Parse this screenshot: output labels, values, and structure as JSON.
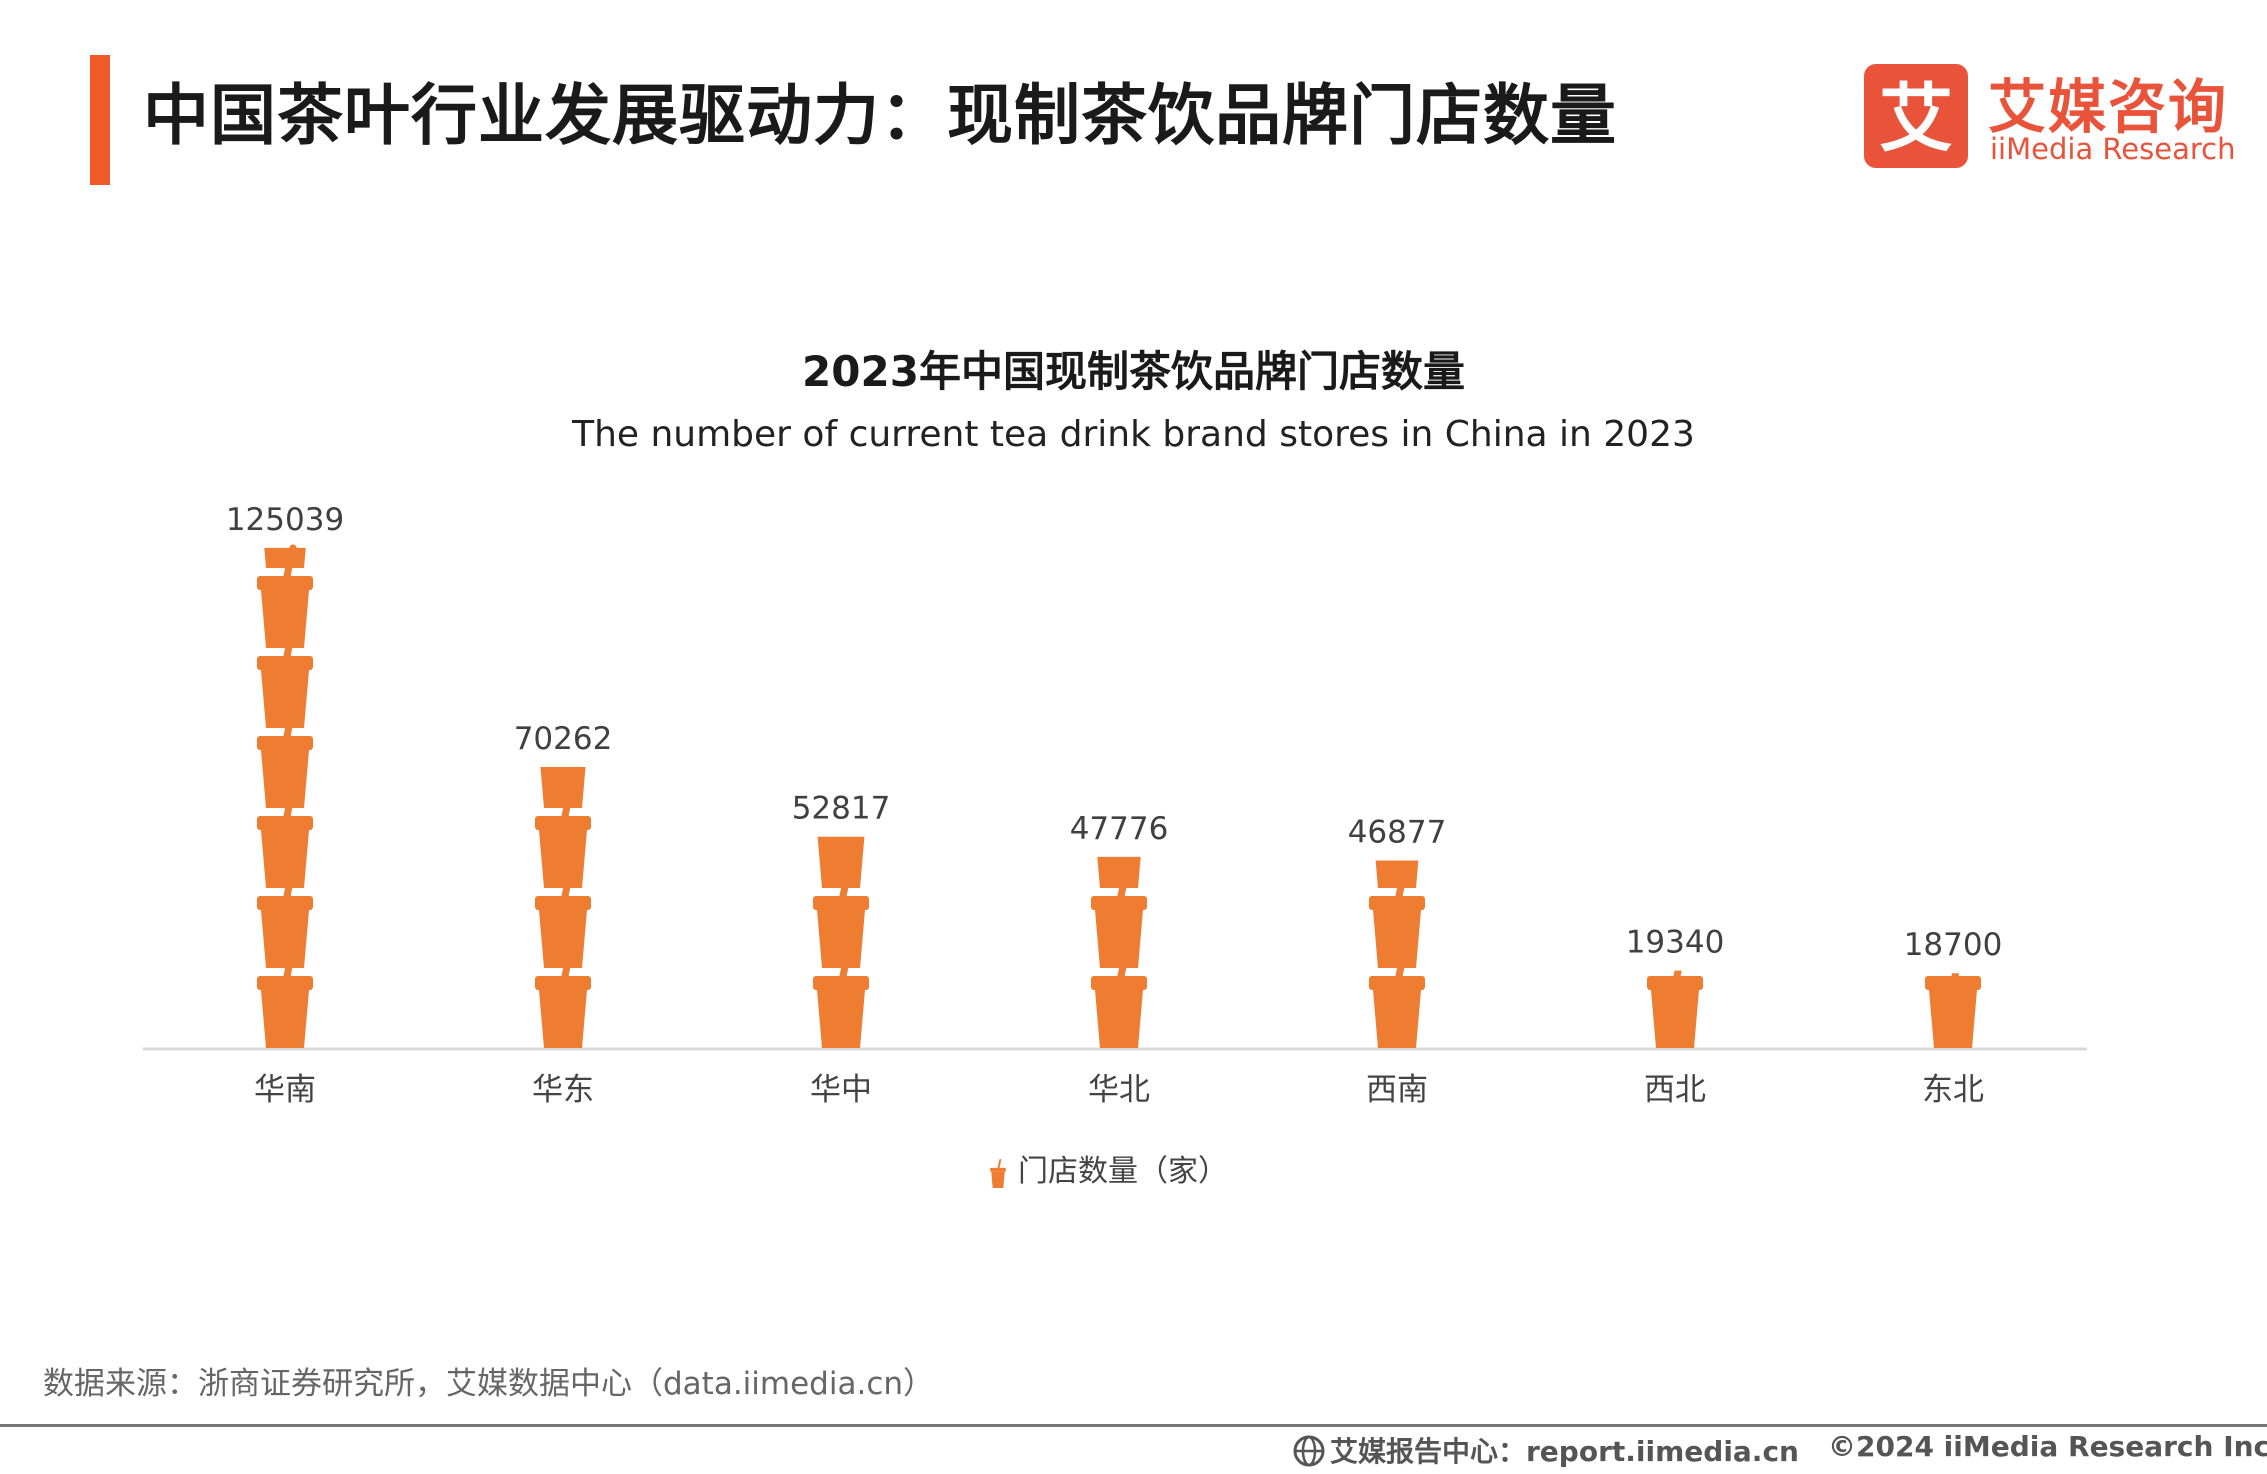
{
  "header": {
    "title": "中国茶叶行业发展驱动力：现制茶饮品牌门店数量"
  },
  "logo": {
    "cn": "艾媒咨询",
    "en": "iiMedia Research",
    "mark_char": "艾"
  },
  "chart_data": {
    "type": "bar",
    "title": "2023年中国现制茶饮品牌门店数量",
    "subtitle": "The number of current tea drink brand stores in China in 2023",
    "categories": [
      "华南",
      "华东",
      "华中",
      "华北",
      "西南",
      "西北",
      "东北"
    ],
    "series": [
      {
        "name": "门店数量（家）",
        "values": [
          125039,
          70262,
          52817,
          47776,
          46877,
          19340,
          18700
        ]
      }
    ],
    "unit_per_icon": 20000,
    "xlabel": "",
    "ylabel": "",
    "ylim": [
      0,
      125039
    ],
    "grid": false,
    "legend": "bottom",
    "data_labels": true,
    "marker_icon": "tea-cup-icon",
    "colors": {
      "bar": "#ef7d31",
      "axis": "#d9d9d9",
      "label": "#404040"
    }
  },
  "source": "数据来源：浙商证券研究所，艾媒数据中心（data.iimedia.cn）",
  "footer": {
    "report_icon": "globe-icon",
    "report": "艾媒报告中心：report.iimedia.cn",
    "copyright": "©2024  iiMedia Research  Inc"
  }
}
